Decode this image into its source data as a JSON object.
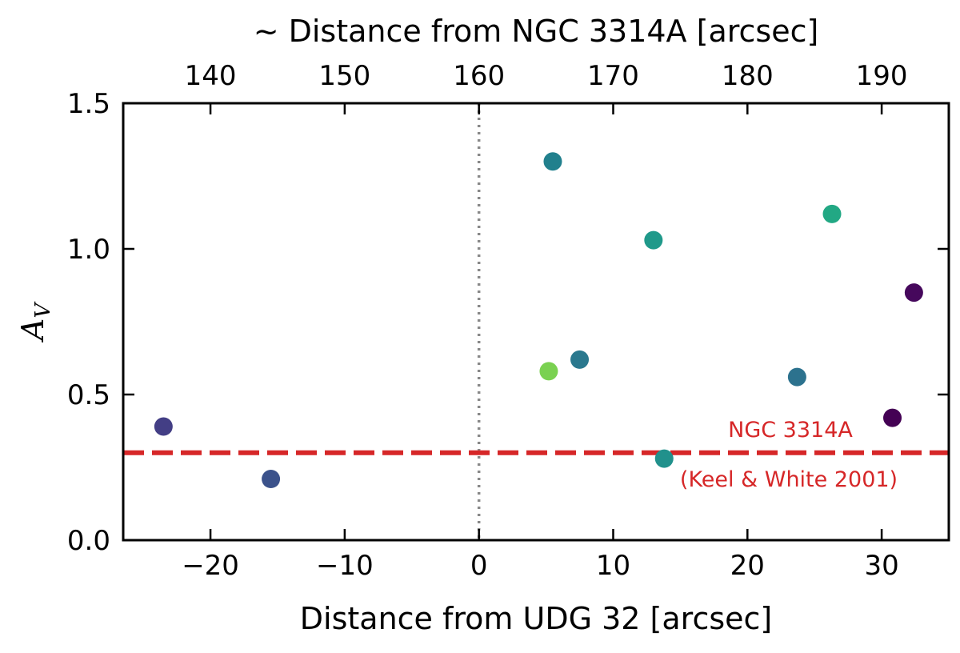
{
  "chart_data": {
    "type": "scatter",
    "xlabel": "Distance from UDG 32 [arcsec]",
    "ylabel_main": "A",
    "ylabel_sub": "V",
    "top_xlabel": "~ Distance from NGC 3314A [arcsec]",
    "xlim": [
      -26.5,
      35
    ],
    "ylim": [
      0,
      1.5
    ],
    "xticks": [
      -20,
      -10,
      0,
      10,
      20,
      30
    ],
    "xtick_labels": [
      "−20",
      "−10",
      "0",
      "10",
      "20",
      "30"
    ],
    "yticks": [
      0,
      0.5,
      1.0,
      1.5
    ],
    "ytick_labels": [
      "0.0",
      "0.5",
      "1.0",
      "1.5"
    ],
    "top_xaxis": {
      "ticks": [
        140,
        150,
        160,
        170,
        180,
        190
      ],
      "tick_labels": [
        "140",
        "150",
        "160",
        "170",
        "180",
        "190"
      ],
      "offset": 160
    },
    "points": [
      {
        "x": -23.5,
        "y": 0.39,
        "color": "#433e85"
      },
      {
        "x": -15.5,
        "y": 0.21,
        "color": "#3b528b"
      },
      {
        "x": 5.2,
        "y": 0.58,
        "color": "#7ad151"
      },
      {
        "x": 5.5,
        "y": 1.3,
        "color": "#21808d"
      },
      {
        "x": 7.5,
        "y": 0.62,
        "color": "#2a788e"
      },
      {
        "x": 13.0,
        "y": 1.03,
        "color": "#1f998a"
      },
      {
        "x": 13.8,
        "y": 0.28,
        "color": "#21918c"
      },
      {
        "x": 23.7,
        "y": 0.56,
        "color": "#2c728e"
      },
      {
        "x": 26.3,
        "y": 1.12,
        "color": "#22a884"
      },
      {
        "x": 30.8,
        "y": 0.42,
        "color": "#440154"
      },
      {
        "x": 32.4,
        "y": 0.85,
        "color": "#46085c"
      }
    ],
    "reference_line": {
      "y": 0.3,
      "color": "#d62728",
      "style": "dashed"
    },
    "vertical_line": {
      "x": 0,
      "color": "#888888",
      "style": "dotted"
    },
    "annotation_line1": "NGC 3314A",
    "annotation_line2": "(Keel & White 2001)",
    "annotation_color": "#d62728",
    "grid": false,
    "legend": "none"
  }
}
